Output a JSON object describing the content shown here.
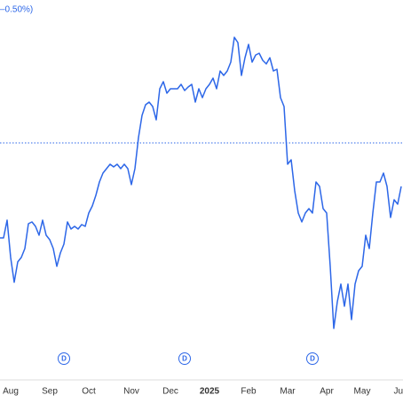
{
  "chart_data": {
    "type": "line",
    "change_label": "–0.50%)",
    "series": [
      {
        "color": "#2d67e8",
        "values": [
          132,
          132,
          152,
          110,
          82,
          105,
          110,
          120,
          148,
          150,
          145,
          135,
          152,
          135,
          130,
          120,
          100,
          115,
          125,
          150,
          142,
          145,
          142,
          147,
          145,
          160,
          168,
          180,
          195,
          205,
          210,
          215,
          212,
          215,
          210,
          215,
          210,
          192,
          210,
          245,
          270,
          282,
          285,
          280,
          265,
          300,
          308,
          295,
          300,
          300,
          300,
          305,
          298,
          302,
          305,
          285,
          300,
          290,
          300,
          305,
          312,
          300,
          320,
          315,
          320,
          330,
          358,
          352,
          315,
          335,
          350,
          330,
          338,
          340,
          332,
          328,
          335,
          320,
          322,
          290,
          280,
          215,
          220,
          185,
          160,
          150,
          160,
          165,
          160,
          195,
          190,
          165,
          160,
          100,
          30,
          60,
          80,
          55,
          80,
          40,
          80,
          95,
          100,
          135,
          120,
          160,
          195,
          195,
          205,
          190,
          155,
          175,
          170,
          190
        ]
      }
    ],
    "reference": 239,
    "xlim": [
      0,
      113
    ],
    "ylim": [
      0,
      400
    ],
    "xticks": [
      {
        "value": 3,
        "label": "Aug"
      },
      {
        "value": 14,
        "label": "Sep"
      },
      {
        "value": 25,
        "label": "Oct"
      },
      {
        "value": 37,
        "label": "Nov"
      },
      {
        "value": 48,
        "label": "Dec"
      },
      {
        "value": 59,
        "label": "2025"
      },
      {
        "value": 70,
        "label": "Feb"
      },
      {
        "value": 81,
        "label": "Mar"
      },
      {
        "value": 92,
        "label": "Apr"
      },
      {
        "value": 102,
        "label": "May"
      },
      {
        "value": 113,
        "label": "Ju"
      }
    ],
    "markers": [
      {
        "x": 18,
        "label": "D"
      },
      {
        "x": 52,
        "label": "D"
      },
      {
        "x": 88,
        "label": "D"
      }
    ]
  }
}
